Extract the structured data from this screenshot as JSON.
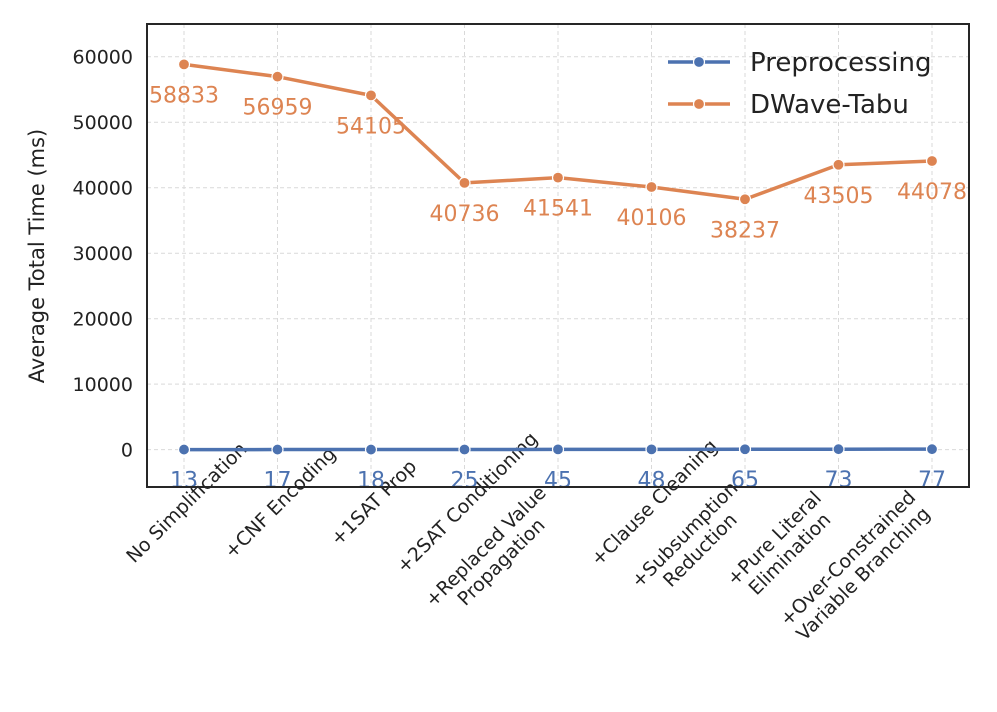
{
  "chart_data": {
    "type": "line",
    "title": "",
    "xlabel": "",
    "ylabel": "Average Total Time (ms)",
    "ylim": [
      -5700,
      65000
    ],
    "yticks": [
      0,
      10000,
      20000,
      30000,
      40000,
      50000,
      60000
    ],
    "ytick_labels": [
      "0",
      "10000",
      "20000",
      "30000",
      "40000",
      "50000",
      "60000"
    ],
    "grid": true,
    "legend_position": "top-right",
    "categories": [
      [
        "No Simplification"
      ],
      [
        "+CNF Encoding"
      ],
      [
        "+1SAT Prop"
      ],
      [
        "+2SAT Conditioning"
      ],
      [
        "+Replaced Value",
        "Propagation"
      ],
      [
        "+Clause Cleaning"
      ],
      [
        "+Subsumption",
        "Reduction"
      ],
      [
        "+Pure Literal",
        "Elimination"
      ],
      [
        "+Over-Constrained",
        "Variable Branching"
      ]
    ],
    "series": [
      {
        "name": "Preprocessing",
        "color": "#4c72b0",
        "values": [
          13,
          17,
          18,
          25,
          45,
          48,
          65,
          73,
          77
        ],
        "labels": [
          "13",
          "17",
          "18",
          "25",
          "45",
          "48",
          "65",
          "73",
          "77"
        ]
      },
      {
        "name": "DWave-Tabu",
        "color": "#dd8452",
        "values": [
          58833,
          56959,
          54105,
          40736,
          41541,
          40106,
          38237,
          43505,
          44078
        ],
        "labels": [
          "58833",
          "56959",
          "54105",
          "40736",
          "41541",
          "40106",
          "38237",
          "43505",
          "44078"
        ]
      }
    ]
  }
}
